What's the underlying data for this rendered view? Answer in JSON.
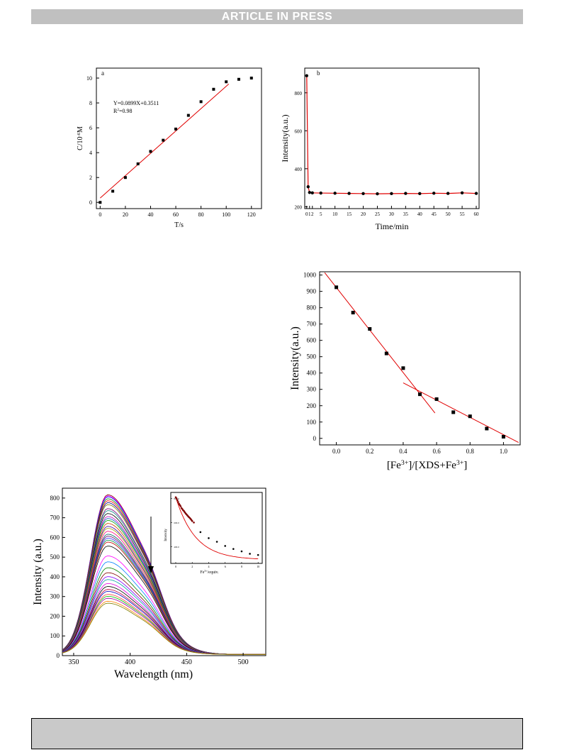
{
  "banner": "ARTICLE IN PRESS",
  "chart_data": [
    {
      "id": "a",
      "type": "scatter",
      "panel_label": "a",
      "xlabel": "T/s",
      "ylabel": "C/10",
      "ylabel_sup": "-6",
      "ylabel_suffix": "M",
      "xlim": [
        -3,
        128
      ],
      "ylim": [
        -0.5,
        10.8
      ],
      "xticks": [
        0,
        20,
        40,
        60,
        80,
        100,
        120
      ],
      "yticks": [
        0,
        2,
        4,
        6,
        8,
        10
      ],
      "equation": "Y=0.0899X+0.3511",
      "r2_base": "R",
      "r2_sup": "2",
      "r2_rest": "=0.98",
      "x": [
        0,
        10,
        20,
        30,
        40,
        50,
        60,
        70,
        80,
        90,
        100,
        110,
        120
      ],
      "y": [
        0.0,
        0.9,
        2.0,
        3.1,
        4.1,
        5.0,
        5.9,
        7.0,
        8.1,
        9.1,
        9.7,
        9.9,
        10.0
      ],
      "fit": {
        "slope": 0.0899,
        "intercept": 0.3511,
        "x_range": [
          0,
          102
        ]
      }
    },
    {
      "id": "b",
      "type": "line",
      "panel_label": "b",
      "xlabel": "Time/min",
      "ylabel": "Intensity(a.u.)",
      "xlim": [
        -0.7,
        61
      ],
      "ylim": [
        190,
        930
      ],
      "xticks": [
        0,
        1,
        2,
        5,
        10,
        15,
        20,
        25,
        30,
        35,
        40,
        45,
        50,
        55,
        60
      ],
      "yticks": [
        200,
        400,
        600,
        800
      ],
      "x": [
        0,
        0.5,
        1,
        2,
        5,
        10,
        15,
        20,
        25,
        30,
        35,
        40,
        45,
        50,
        55,
        60
      ],
      "y": [
        890,
        305,
        275,
        273,
        272,
        271,
        270,
        269,
        268,
        269,
        270,
        269,
        271,
        270,
        273,
        270
      ]
    },
    {
      "id": "c",
      "type": "scatter",
      "xlabel_parts": [
        "[Fe",
        "3+",
        "]/[XDS+Fe",
        "3+",
        "]"
      ],
      "ylabel": "Intensity(a.u.)",
      "xlim": [
        -0.1,
        1.1
      ],
      "ylim": [
        -40,
        1020
      ],
      "xticks": [
        0.0,
        0.2,
        0.4,
        0.6,
        0.8,
        1.0
      ],
      "xtick_labels": [
        "0.0",
        "0.2",
        "0.4",
        "0.6",
        "0.8",
        "1.0"
      ],
      "yticks": [
        0,
        100,
        200,
        300,
        400,
        500,
        600,
        700,
        800,
        900,
        1000
      ],
      "x": [
        0.0,
        0.1,
        0.2,
        0.3,
        0.4,
        0.5,
        0.6,
        0.7,
        0.8,
        0.9,
        1.0
      ],
      "y": [
        925,
        770,
        670,
        520,
        430,
        270,
        240,
        160,
        135,
        60,
        10
      ],
      "fit_lines": [
        {
          "x1": -0.07,
          "y1": 1015,
          "x2": 0.59,
          "y2": 155
        },
        {
          "x1": 0.4,
          "y1": 340,
          "x2": 1.09,
          "y2": -25
        }
      ]
    },
    {
      "id": "d",
      "type": "line",
      "xlabel": "Wavelength (nm)",
      "ylabel": "Intensity (a.u.)",
      "xlim": [
        340,
        520
      ],
      "ylim": [
        0,
        850
      ],
      "xticks": [
        350,
        400,
        450,
        500
      ],
      "yticks": [
        0,
        100,
        200,
        300,
        400,
        500,
        600,
        700,
        800
      ],
      "peak_wavelength": 380,
      "peak_intensities": [
        810,
        805,
        800,
        790,
        780,
        770,
        760,
        740,
        730,
        715,
        700,
        690,
        680,
        665,
        650,
        640,
        625,
        610,
        600,
        590,
        580,
        570,
        550,
        500,
        470,
        440,
        415,
        395,
        380,
        360,
        345,
        330,
        320,
        305,
        295,
        285,
        270,
        260
      ],
      "series_colors": [
        "#800000",
        "#ff00ff",
        "#0000ff",
        "#008000",
        "#ff0000",
        "#000080",
        "#808000",
        "#800080",
        "#008080",
        "#000000",
        "#c000c0",
        "#0060c0",
        "#00a000",
        "#d04000",
        "#4000a0",
        "#a0a000",
        "#ff0080",
        "#006060",
        "#600060",
        "#3030ff",
        "#009040",
        "#c00000",
        "#000000",
        "#ff00ff",
        "#0080ff",
        "#008000",
        "#800000",
        "#8000ff",
        "#00a0a0",
        "#e000e0",
        "#000000",
        "#c00040",
        "#0000c0",
        "#ff4040",
        "#00c000",
        "#a000a0",
        "#ff8000",
        "#808000"
      ],
      "inset": {
        "xlabel_parts": [
          "Fe",
          "3+",
          "/equiv."
        ],
        "ylabel": "Intensity",
        "xlim": [
          -0.6,
          10.5
        ],
        "ylim": [
          260,
          850
        ],
        "xticks": [
          0,
          2,
          4,
          6,
          8,
          10
        ],
        "yticks": [
          400,
          600,
          800
        ],
        "ytick_labels": [
          "400.0",
          "600.0",
          "800.0"
        ],
        "x": [
          0.0,
          0.1,
          0.2,
          0.3,
          0.4,
          0.5,
          0.6,
          0.7,
          0.8,
          0.9,
          1.0,
          1.1,
          1.2,
          1.3,
          1.4,
          1.5,
          1.6,
          1.7,
          1.8,
          1.9,
          2.0,
          2.2,
          3.0,
          4.0,
          5.0,
          6.0,
          7.0,
          8.0,
          9.0,
          10.0
        ],
        "y": [
          810,
          800,
          785,
          770,
          755,
          745,
          735,
          720,
          712,
          702,
          695,
          685,
          676,
          668,
          660,
          652,
          645,
          638,
          630,
          622,
          612,
          600,
          520,
          470,
          440,
          405,
          380,
          360,
          340,
          330
        ],
        "fit": {
          "a": 520,
          "k": 0.42,
          "c": 290
        }
      }
    }
  ]
}
